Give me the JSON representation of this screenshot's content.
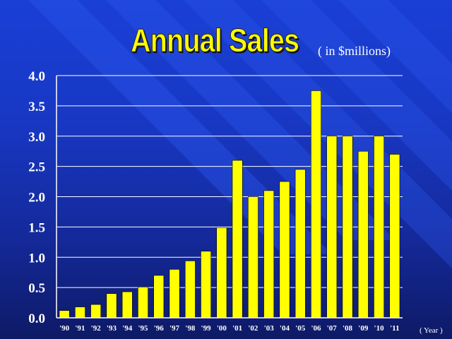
{
  "chart_data": {
    "type": "bar",
    "title": "Annual Sales",
    "subtitle": "( in $millions)",
    "xlabel": "( Year )",
    "ylabel": "",
    "ylim": [
      0,
      4.0
    ],
    "yticks": [
      "0.0",
      "0.5",
      "1.0",
      "1.5",
      "2.0",
      "2.5",
      "3.0",
      "3.5",
      "4.0"
    ],
    "grid": true,
    "legend": "none",
    "categories": [
      "'90",
      "'91",
      "'92",
      "'93",
      "'94",
      "'95",
      "'96",
      "'97",
      "'98",
      "'99",
      "'00",
      "'01",
      "'02",
      "'03",
      "'04",
      "'05",
      "'06",
      "'07",
      "'08",
      "'09",
      "'10",
      "'11"
    ],
    "values": [
      0.12,
      0.18,
      0.22,
      0.4,
      0.43,
      0.51,
      0.7,
      0.8,
      0.94,
      1.1,
      1.49,
      2.6,
      2.0,
      2.1,
      2.25,
      2.45,
      3.75,
      3.0,
      3.0,
      2.75,
      3.0,
      2.7
    ],
    "colors": {
      "bar": "#ffff00",
      "bar_outline": "#000000",
      "grid": "#ffffff",
      "axis": "#ffffff",
      "title": "#ffff00",
      "text": "#ffffff"
    }
  }
}
